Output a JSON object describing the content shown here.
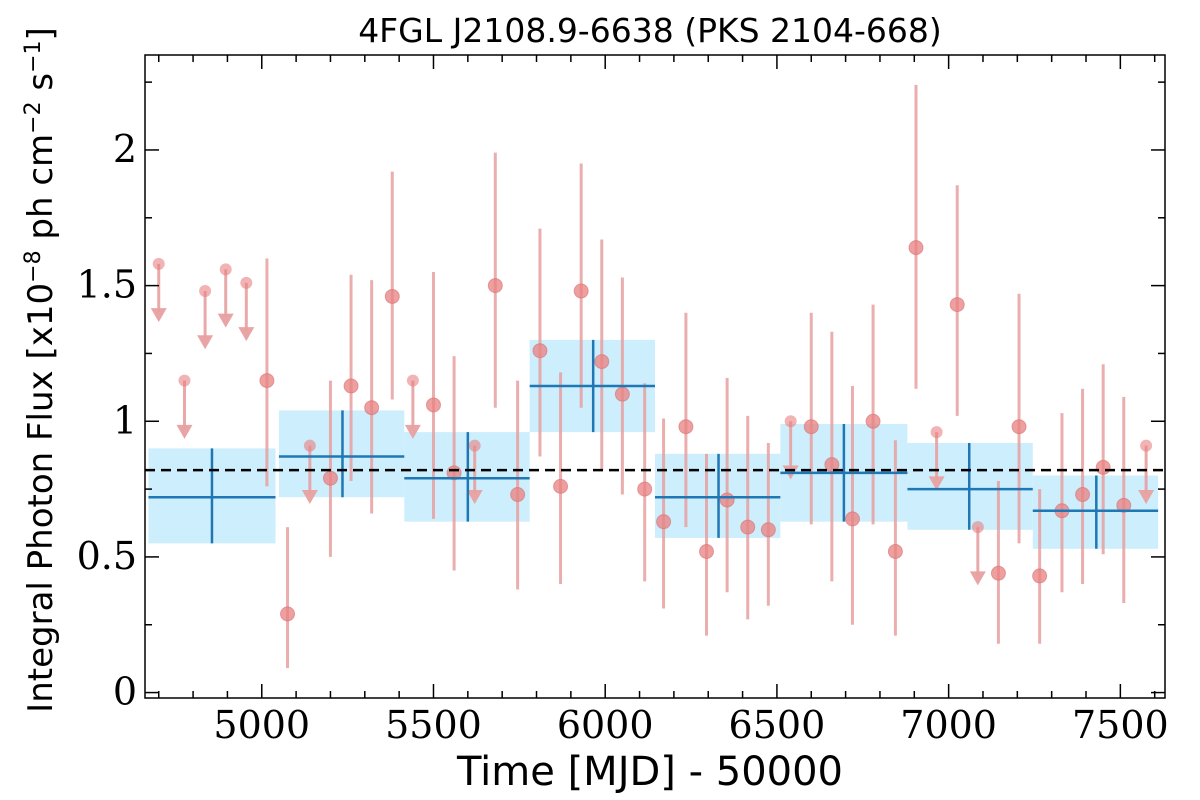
{
  "chart_data": {
    "type": "scatter",
    "title": "4FGL J2108.9-6638 (PKS 2104-668)",
    "xlabel": "Time [MJD] - 50000",
    "ylabel": "Integral Photon Flux [x10",
    "ylabel_exp1": "−8",
    "ylabel_mid": " ph cm",
    "ylabel_exp2": "−2",
    "ylabel_mid2": " s",
    "ylabel_exp3": "−1",
    "ylabel_end": "]",
    "xlim": [
      4660,
      7630
    ],
    "ylim": [
      -0.02,
      2.35
    ],
    "x_ticks": [
      5000,
      5500,
      6000,
      6500,
      7000,
      7500
    ],
    "x_tick_labels": [
      "5000",
      "5500",
      "6000",
      "6500",
      "7000",
      "7500"
    ],
    "y_ticks": [
      0,
      0.5,
      1,
      1.5,
      2
    ],
    "y_tick_labels": [
      "0",
      "0.5",
      "1",
      "1.5",
      "2"
    ],
    "mean_flux": 0.82,
    "colors": {
      "points": "#e88080",
      "errorbars": "#e8a0a0",
      "bins_fill": "#cdeefc",
      "bins_line": "#1f77b4",
      "mean_line": "#000000"
    },
    "grid": false,
    "yearly_bins": [
      {
        "x": 4855,
        "x_lo": 4670,
        "x_hi": 5040,
        "y": 0.72,
        "y_lo": 0.55,
        "y_hi": 0.9
      },
      {
        "x": 5235,
        "x_lo": 5050,
        "x_hi": 5415,
        "y": 0.87,
        "y_lo": 0.72,
        "y_hi": 1.04
      },
      {
        "x": 5600,
        "x_lo": 5415,
        "x_hi": 5780,
        "y": 0.79,
        "y_lo": 0.63,
        "y_hi": 0.96
      },
      {
        "x": 5965,
        "x_lo": 5780,
        "x_hi": 6145,
        "y": 1.13,
        "y_lo": 0.96,
        "y_hi": 1.3
      },
      {
        "x": 6330,
        "x_lo": 6145,
        "x_hi": 6510,
        "y": 0.72,
        "y_lo": 0.57,
        "y_hi": 0.88
      },
      {
        "x": 6695,
        "x_lo": 6510,
        "x_hi": 6880,
        "y": 0.81,
        "y_lo": 0.63,
        "y_hi": 0.99
      },
      {
        "x": 7060,
        "x_lo": 6880,
        "x_hi": 7245,
        "y": 0.75,
        "y_lo": 0.6,
        "y_hi": 0.92
      },
      {
        "x": 7430,
        "x_lo": 7245,
        "x_hi": 7610,
        "y": 0.67,
        "y_lo": 0.53,
        "y_hi": 0.8
      }
    ],
    "monthly_detections": [
      {
        "x": 5015,
        "y": 1.15,
        "lo": 0.76,
        "hi": 1.6
      },
      {
        "x": 5075,
        "y": 0.29,
        "lo": 0.09,
        "hi": 0.61
      },
      {
        "x": 5200,
        "y": 0.79,
        "lo": 0.5,
        "hi": 1.15
      },
      {
        "x": 5260,
        "y": 1.13,
        "lo": 0.78,
        "hi": 1.54
      },
      {
        "x": 5320,
        "y": 1.05,
        "lo": 0.66,
        "hi": 1.52
      },
      {
        "x": 5380,
        "y": 1.46,
        "lo": 1.08,
        "hi": 1.92
      },
      {
        "x": 5500,
        "y": 1.06,
        "lo": 0.64,
        "hi": 1.55
      },
      {
        "x": 5560,
        "y": 0.81,
        "lo": 0.45,
        "hi": 1.24
      },
      {
        "x": 5680,
        "y": 1.5,
        "lo": 1.05,
        "hi": 1.99
      },
      {
        "x": 5745,
        "y": 0.73,
        "lo": 0.38,
        "hi": 1.15
      },
      {
        "x": 5810,
        "y": 1.26,
        "lo": 0.87,
        "hi": 1.71
      },
      {
        "x": 5870,
        "y": 0.76,
        "lo": 0.4,
        "hi": 1.18
      },
      {
        "x": 5930,
        "y": 1.48,
        "lo": 1.05,
        "hi": 1.95
      },
      {
        "x": 5990,
        "y": 1.22,
        "lo": 0.82,
        "hi": 1.67
      },
      {
        "x": 6050,
        "y": 1.1,
        "lo": 0.73,
        "hi": 1.53
      },
      {
        "x": 6115,
        "y": 0.75,
        "lo": 0.41,
        "hi": 1.14
      },
      {
        "x": 6170,
        "y": 0.63,
        "lo": 0.31,
        "hi": 1.01
      },
      {
        "x": 6235,
        "y": 0.98,
        "lo": 0.61,
        "hi": 1.4
      },
      {
        "x": 6295,
        "y": 0.52,
        "lo": 0.21,
        "hi": 0.88
      },
      {
        "x": 6355,
        "y": 0.71,
        "lo": 0.37,
        "hi": 1.16
      },
      {
        "x": 6415,
        "y": 0.61,
        "lo": 0.27,
        "hi": 1.02
      },
      {
        "x": 6475,
        "y": 0.6,
        "lo": 0.32,
        "hi": 0.92
      },
      {
        "x": 6600,
        "y": 0.98,
        "lo": 0.62,
        "hi": 1.4
      },
      {
        "x": 6660,
        "y": 0.84,
        "lo": 0.41,
        "hi": 1.33
      },
      {
        "x": 6720,
        "y": 0.64,
        "lo": 0.25,
        "hi": 1.13
      },
      {
        "x": 6780,
        "y": 1.0,
        "lo": 0.62,
        "hi": 1.43
      },
      {
        "x": 6845,
        "y": 0.52,
        "lo": 0.21,
        "hi": 0.93
      },
      {
        "x": 6905,
        "y": 1.64,
        "lo": 1.12,
        "hi": 2.24
      },
      {
        "x": 7025,
        "y": 1.43,
        "lo": 1.02,
        "hi": 1.87
      },
      {
        "x": 7145,
        "y": 0.44,
        "lo": 0.18,
        "hi": 0.78
      },
      {
        "x": 7205,
        "y": 0.98,
        "lo": 0.55,
        "hi": 1.47
      },
      {
        "x": 7265,
        "y": 0.43,
        "lo": 0.18,
        "hi": 0.75
      },
      {
        "x": 7330,
        "y": 0.67,
        "lo": 0.37,
        "hi": 1.03
      },
      {
        "x": 7390,
        "y": 0.73,
        "lo": 0.4,
        "hi": 1.12
      },
      {
        "x": 7450,
        "y": 0.83,
        "lo": 0.51,
        "hi": 1.21
      },
      {
        "x": 7510,
        "y": 0.69,
        "lo": 0.33,
        "hi": 1.09
      }
    ],
    "monthly_upper_limits": [
      {
        "x": 4700,
        "y": 1.58,
        "arrow_to": 1.38
      },
      {
        "x": 4775,
        "y": 1.15,
        "arrow_to": 0.95
      },
      {
        "x": 4835,
        "y": 1.48,
        "arrow_to": 1.28
      },
      {
        "x": 4895,
        "y": 1.56,
        "arrow_to": 1.36
      },
      {
        "x": 4955,
        "y": 1.51,
        "arrow_to": 1.31
      },
      {
        "x": 5140,
        "y": 0.91,
        "arrow_to": 0.71
      },
      {
        "x": 5440,
        "y": 1.15,
        "arrow_to": 0.95
      },
      {
        "x": 5620,
        "y": 0.91,
        "arrow_to": 0.71
      },
      {
        "x": 6540,
        "y": 1.0,
        "arrow_to": 0.8
      },
      {
        "x": 6965,
        "y": 0.96,
        "arrow_to": 0.76
      },
      {
        "x": 7085,
        "y": 0.61,
        "arrow_to": 0.41
      },
      {
        "x": 7575,
        "y": 0.91,
        "arrow_to": 0.71
      }
    ]
  }
}
